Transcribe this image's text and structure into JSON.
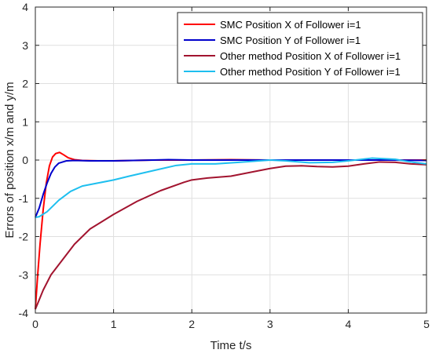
{
  "chart_data": {
    "type": "line",
    "title": "",
    "xlabel": "Time t/s",
    "ylabel": "Errors of position x/m and y/m",
    "xlim": [
      0,
      5
    ],
    "ylim": [
      -4,
      4
    ],
    "xticks": [
      0,
      1,
      2,
      3,
      4,
      5
    ],
    "yticks": [
      -4,
      -3,
      -2,
      -1,
      0,
      1,
      2,
      3,
      4
    ],
    "grid": true,
    "legend_position": "top-right",
    "series": [
      {
        "name": "SMC Position X of Follower i=1",
        "color": "#ff0000",
        "points": [
          [
            0,
            -3.9
          ],
          [
            0.03,
            -3.0
          ],
          [
            0.06,
            -2.2
          ],
          [
            0.1,
            -1.3
          ],
          [
            0.14,
            -0.6
          ],
          [
            0.18,
            -0.15
          ],
          [
            0.22,
            0.08
          ],
          [
            0.26,
            0.17
          ],
          [
            0.31,
            0.2
          ],
          [
            0.36,
            0.14
          ],
          [
            0.42,
            0.06
          ],
          [
            0.5,
            0.01
          ],
          [
            0.6,
            -0.01
          ],
          [
            0.8,
            -0.02
          ],
          [
            1.0,
            -0.02
          ],
          [
            1.5,
            0.0
          ],
          [
            2.0,
            0.0
          ],
          [
            2.5,
            0.01
          ],
          [
            3.0,
            0.0
          ],
          [
            3.5,
            0.0
          ],
          [
            4.0,
            0.0
          ],
          [
            4.5,
            0.0
          ],
          [
            5.0,
            0.0
          ]
        ]
      },
      {
        "name": "SMC Position Y of Follower i=1",
        "color": "#0000cc",
        "points": [
          [
            0,
            -1.5
          ],
          [
            0.05,
            -1.25
          ],
          [
            0.1,
            -0.9
          ],
          [
            0.15,
            -0.6
          ],
          [
            0.2,
            -0.35
          ],
          [
            0.25,
            -0.18
          ],
          [
            0.3,
            -0.08
          ],
          [
            0.4,
            -0.02
          ],
          [
            0.5,
            -0.01
          ],
          [
            0.7,
            -0.02
          ],
          [
            1.0,
            -0.02
          ],
          [
            1.5,
            0.0
          ],
          [
            1.7,
            0.01
          ],
          [
            2.0,
            0.0
          ],
          [
            2.5,
            0.0
          ],
          [
            3.0,
            0.0
          ],
          [
            3.5,
            0.0
          ],
          [
            4.0,
            0.0
          ],
          [
            4.5,
            0.0
          ],
          [
            5.0,
            -0.01
          ]
        ]
      },
      {
        "name": "Other method Position X of Follower i=1",
        "color": "#a2142f",
        "points": [
          [
            0,
            -3.9
          ],
          [
            0.1,
            -3.4
          ],
          [
            0.2,
            -3.0
          ],
          [
            0.35,
            -2.6
          ],
          [
            0.5,
            -2.2
          ],
          [
            0.7,
            -1.8
          ],
          [
            1.0,
            -1.42
          ],
          [
            1.3,
            -1.08
          ],
          [
            1.6,
            -0.8
          ],
          [
            1.9,
            -0.58
          ],
          [
            2.0,
            -0.52
          ],
          [
            2.2,
            -0.47
          ],
          [
            2.5,
            -0.42
          ],
          [
            2.8,
            -0.3
          ],
          [
            3.0,
            -0.22
          ],
          [
            3.2,
            -0.16
          ],
          [
            3.4,
            -0.15
          ],
          [
            3.6,
            -0.17
          ],
          [
            3.8,
            -0.18
          ],
          [
            4.0,
            -0.16
          ],
          [
            4.2,
            -0.1
          ],
          [
            4.4,
            -0.05
          ],
          [
            4.6,
            -0.06
          ],
          [
            4.8,
            -0.1
          ],
          [
            5.0,
            -0.12
          ]
        ]
      },
      {
        "name": "Other method Position Y of Follower i=1",
        "color": "#1ebfef",
        "points": [
          [
            0,
            -1.5
          ],
          [
            0.05,
            -1.48
          ],
          [
            0.15,
            -1.35
          ],
          [
            0.3,
            -1.05
          ],
          [
            0.45,
            -0.82
          ],
          [
            0.6,
            -0.68
          ],
          [
            0.8,
            -0.6
          ],
          [
            1.0,
            -0.52
          ],
          [
            1.2,
            -0.42
          ],
          [
            1.5,
            -0.28
          ],
          [
            1.8,
            -0.14
          ],
          [
            2.0,
            -0.1
          ],
          [
            2.3,
            -0.1
          ],
          [
            2.6,
            -0.06
          ],
          [
            3.0,
            -0.0
          ],
          [
            3.2,
            -0.02
          ],
          [
            3.5,
            -0.07
          ],
          [
            3.8,
            -0.06
          ],
          [
            4.0,
            -0.02
          ],
          [
            4.3,
            0.05
          ],
          [
            4.6,
            0.02
          ],
          [
            4.8,
            -0.05
          ],
          [
            5.0,
            -0.1
          ]
        ]
      }
    ]
  }
}
